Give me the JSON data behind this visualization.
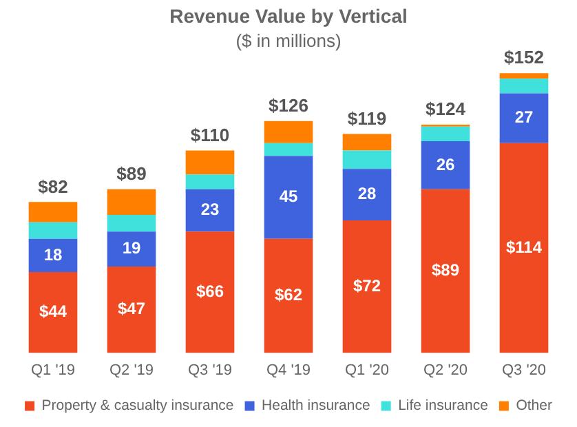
{
  "chart_data": {
    "type": "bar",
    "title": "Revenue Value by Vertical",
    "subtitle": "($ in millions)",
    "stacked": true,
    "legend": "bottom",
    "grid": false,
    "tick_labels": "x",
    "categories": [
      "Q1 '19",
      "Q2 '19",
      "Q3 '19",
      "Q4 '19",
      "Q1 '20",
      "Q2 '20",
      "Q3 '20"
    ],
    "series": [
      {
        "name": "Property & casualty insurance",
        "color": "#f04a23",
        "values": [
          44,
          47,
          66,
          62,
          72,
          89,
          114
        ],
        "value_labels": [
          "$44",
          "$47",
          "$66",
          "$62",
          "$72",
          "$89",
          "$114"
        ]
      },
      {
        "name": "Health insurance",
        "color": "#3f63dd",
        "values": [
          18,
          19,
          23,
          45,
          28,
          26,
          27
        ],
        "value_labels": [
          "18",
          "19",
          "23",
          "45",
          "28",
          "26",
          "27"
        ]
      },
      {
        "name": "Life insurance",
        "color": "#40e0dc",
        "values": [
          9,
          9,
          8,
          7,
          10,
          8,
          8
        ]
      },
      {
        "name": "Other",
        "color": "#ff8000",
        "values": [
          11,
          14,
          13,
          12,
          9,
          1,
          3
        ]
      }
    ],
    "totals": [
      "$82",
      "$89",
      "$110",
      "$126",
      "$119",
      "$124",
      "$152"
    ]
  }
}
